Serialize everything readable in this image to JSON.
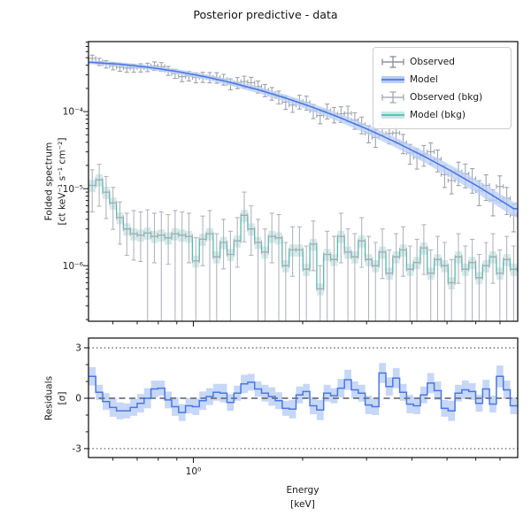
{
  "figure": {
    "title": "Posterior predictive - data",
    "background": "#ffffff"
  },
  "top_panel": {
    "ylabel_line1": "Folded spectrum",
    "ylabel_line2": "[ct keV⁻¹ s⁻¹ cm⁻²]",
    "y_tick_labels": [
      "10⁻⁴",
      "10⁻⁵",
      "10⁻⁶"
    ],
    "y_tick_values": [
      0.0001,
      1e-05,
      1e-06
    ]
  },
  "bottom_panel": {
    "ylabel_line1": "Residuals",
    "ylabel_line2": "[σ]",
    "y_tick_labels": [
      "3",
      "0",
      "-3"
    ],
    "y_tick_values": [
      3,
      0,
      -3
    ]
  },
  "x_axis": {
    "label_line1": "Energy",
    "label_line2": "[keV]",
    "tick_label": "10⁰",
    "tick_value": 1
  },
  "legend": {
    "items": [
      {
        "label": "Observed",
        "swatch": "errorbar",
        "color": "#8e939d",
        "band": null
      },
      {
        "label": "Model",
        "swatch": "band",
        "color": "#4a78e0",
        "band": "#b9cdf5"
      },
      {
        "label": "Observed (bkg)",
        "swatch": "errorbar",
        "color": "#a8adb7",
        "band": null
      },
      {
        "label": "Model (bkg)",
        "swatch": "band",
        "color": "#55b7b1",
        "band": "#c9e7e4"
      }
    ]
  },
  "chart_data": {
    "type": "line",
    "title": "Posterior predictive - data",
    "xlabel": "Energy [keV]",
    "panels": [
      {
        "name": "folded-spectrum",
        "ylabel": "Folded spectrum [ct keV⁻¹ s⁻¹ cm⁻²]",
        "x_scale": "log",
        "y_scale": "log",
        "xlim": [
          0.514,
          7.83
        ],
        "ylim": [
          1.9e-07,
          0.00081
        ],
        "legend_position": "upper-right",
        "grid": false
      },
      {
        "name": "residuals",
        "ylabel": "Residuals [σ]",
        "x_scale": "log",
        "y_scale": "linear",
        "xlim": [
          0.514,
          7.83
        ],
        "ylim": [
          -3.53,
          3.58
        ],
        "guides_dotted": [
          3,
          -3
        ],
        "guide_dashed": 0,
        "grid": false
      }
    ],
    "bins": {
      "emin": 0.515,
      "emax": 7.8,
      "count": 62
    },
    "model_flux": [
      0.0004345,
      0.0004286,
      0.0004228,
      0.0004171,
      0.0004115,
      0.0004027,
      0.000394,
      0.0003855,
      0.0003773,
      0.0003663,
      0.0003555,
      0.000345,
      0.0003347,
      0.0003224,
      0.0003103,
      0.0002987,
      0.0002875,
      0.0002746,
      0.0002621,
      0.0002504,
      0.0002391,
      0.0002264,
      0.0002144,
      0.0002032,
      0.0001924,
      0.0001807,
      0.0001698,
      0.0001596,
      0.0001499,
      0.0001396,
      0.0001301,
      0.0001213,
      0.000113,
      0.0001044,
      9.652e-05,
      8.923e-05,
      8.244e-05,
      7.558e-05,
      6.929e-05,
      6.352e-05,
      5.823e-05,
      5.296e-05,
      4.817e-05,
      4.379e-05,
      3.982e-05,
      3.593e-05,
      3.239e-05,
      2.922e-05,
      2.635e-05,
      2.357e-05,
      2.109e-05,
      1.886e-05,
      1.688e-05,
      1.498e-05,
      1.329e-05,
      1.179e-05,
      1.047e-05,
      9.21e-06,
      8.11e-06,
      7.14e-06,
      6.28e-06,
      5.5e-06
    ],
    "obs_err_frac": [
      0.1,
      0.105,
      0.11,
      0.112,
      0.115,
      0.118,
      0.12,
      0.122,
      0.125,
      0.128,
      0.13,
      0.133,
      0.136,
      0.14,
      0.143,
      0.146,
      0.15,
      0.153,
      0.156,
      0.16,
      0.163,
      0.166,
      0.17,
      0.174,
      0.178,
      0.182,
      0.186,
      0.19,
      0.194,
      0.198,
      0.202,
      0.206,
      0.21,
      0.215,
      0.22,
      0.225,
      0.23,
      0.235,
      0.24,
      0.245,
      0.25,
      0.256,
      0.262,
      0.268,
      0.274,
      0.28,
      0.287,
      0.294,
      0.3,
      0.307,
      0.314,
      0.321,
      0.328,
      0.335,
      0.342,
      0.35,
      0.357,
      0.364,
      0.371,
      0.378,
      0.385,
      0.392
    ],
    "residuals_sigma": [
      1.3,
      0.35,
      -0.2,
      -0.55,
      -0.75,
      -0.75,
      -0.55,
      -0.3,
      0.0,
      0.55,
      0.6,
      -0.1,
      -0.5,
      -0.85,
      -0.45,
      -0.5,
      -0.15,
      0.1,
      0.35,
      0.3,
      -0.25,
      0.3,
      0.85,
      0.95,
      0.55,
      0.3,
      0.1,
      -0.15,
      -0.6,
      -0.65,
      0.2,
      0.4,
      -0.45,
      -0.7,
      0.3,
      0.15,
      0.6,
      1.1,
      0.5,
      0.3,
      -0.4,
      -0.5,
      1.5,
      0.7,
      1.2,
      0.35,
      -0.35,
      -0.45,
      0.2,
      0.9,
      0.45,
      -0.6,
      -0.75,
      0.3,
      0.5,
      0.4,
      -0.3,
      0.55,
      -0.35,
      1.3,
      0.5,
      -0.45
    ],
    "residuals_band_halfwidth": [
      0.55,
      0.45,
      0.5,
      0.55,
      0.5,
      0.45,
      0.5,
      0.55,
      0.6,
      0.5,
      0.45,
      0.5,
      0.55,
      0.5,
      0.45,
      0.5,
      0.55,
      0.5,
      0.5,
      0.55,
      0.5,
      0.45,
      0.55,
      0.5,
      0.45,
      0.5,
      0.55,
      0.5,
      0.45,
      0.55,
      0.5,
      0.45,
      0.5,
      0.6,
      0.5,
      0.45,
      0.55,
      0.6,
      0.5,
      0.5,
      0.55,
      0.5,
      0.6,
      0.55,
      0.6,
      0.5,
      0.55,
      0.5,
      0.5,
      0.6,
      0.55,
      0.5,
      0.6,
      0.5,
      0.55,
      0.5,
      0.5,
      0.55,
      0.5,
      0.65,
      0.55,
      0.5
    ],
    "bkg_model_flux": [
      1.1e-05,
      1.3e-05,
      9e-06,
      6.5e-06,
      4.2e-06,
      3e-06,
      2.6e-06,
      2.5e-06,
      2.65e-06,
      2.4e-06,
      2.5e-06,
      2.3e-06,
      2.6e-06,
      2.5e-06,
      2.4e-06,
      1.15e-06,
      2.2e-06,
      2.6e-06,
      1.3e-06,
      2e-06,
      1.4e-06,
      2.1e-06,
      4.5e-06,
      3e-06,
      2e-06,
      1.5e-06,
      2.4e-06,
      2.3e-06,
      1e-06,
      1.6e-06,
      1.6e-06,
      9e-07,
      1.9e-06,
      5e-07,
      1.4e-06,
      1.2e-06,
      2.4e-06,
      1.5e-06,
      1.3e-06,
      2.1e-06,
      1.2e-06,
      1e-06,
      1.5e-06,
      8e-07,
      1.3e-06,
      1.6e-06,
      9e-07,
      1.1e-06,
      1.7e-06,
      8e-07,
      1.2e-06,
      1e-06,
      6e-07,
      1.3e-06,
      9e-07,
      1.1e-06,
      7e-07,
      1e-06,
      1.3e-06,
      8e-07,
      1.2e-06,
      9e-07
    ],
    "bkg_err_to_bottom": [
      0,
      0,
      0,
      0,
      0,
      0,
      0,
      0,
      1,
      0,
      1,
      0,
      1,
      1,
      0,
      1,
      0,
      1,
      1,
      0,
      1,
      0,
      0,
      0,
      1,
      1,
      0,
      1,
      1,
      0,
      1,
      1,
      0,
      1,
      1,
      1,
      0,
      1,
      1,
      0,
      1,
      1,
      0,
      1,
      1,
      0,
      1,
      1,
      0,
      1,
      1,
      1,
      1,
      0,
      1,
      1,
      1,
      1,
      0,
      1,
      1,
      1
    ],
    "bkg_err_hi_factor": 2.0,
    "bkg_err_hi_factor_left": 1.6,
    "bkg_err_lo_divisor": 2.2,
    "model_band_frac_of_err": 0.55,
    "bkg_band_frac": 0.18,
    "colors": {
      "observed": "#8e939d",
      "observed_bkg": "#a8adb7",
      "model_line": "#4a78e0",
      "model_band": "#b9cdf5",
      "bkg_line": "#55b7b1",
      "bkg_band": "#c9e7e4",
      "resid_line": "#4a78e0",
      "resid_band": "#b9cdf5",
      "zero_line": "#6e737e",
      "sigma_line": "#8a8f9c",
      "spine": "#1a1a1a"
    }
  }
}
